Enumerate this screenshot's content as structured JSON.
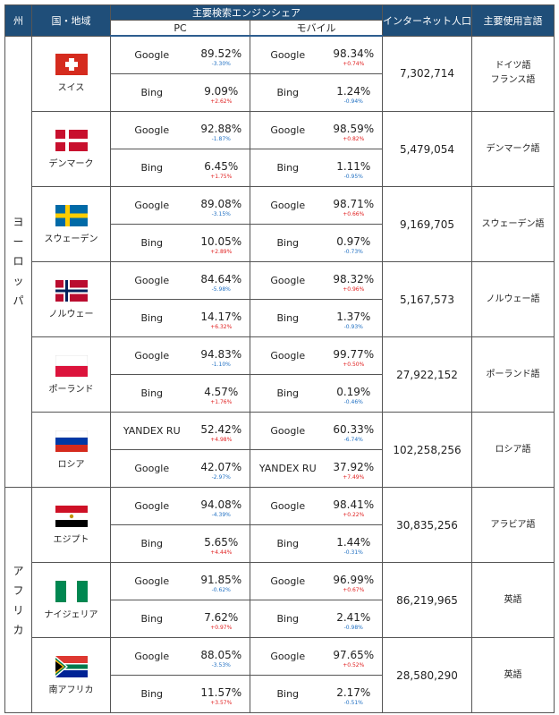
{
  "headers": {
    "region": "州",
    "country": "国・地域",
    "share": "主要検索エンジンシェア",
    "pc": "PC",
    "mobile": "モバイル",
    "internet_pop": "インターネット人口",
    "language": "主要使用言語"
  },
  "regions": [
    {
      "name": "ヨーロッパ",
      "chars": [
        "ヨ",
        "ー",
        "ロ",
        "ッ",
        "パ"
      ]
    },
    {
      "name": "アフリカ",
      "chars": [
        "ア",
        "フ",
        "リ",
        "カ"
      ]
    }
  ],
  "countries": [
    {
      "name": "スイス",
      "flag": "switzerland-flag",
      "population": "7,302,714",
      "languages": [
        "ドイツ語",
        "フランス語"
      ],
      "rows": [
        {
          "pc_engine": "Google",
          "pc_share": "89.52%",
          "pc_delta": "-3.30%",
          "pc_dir": "down",
          "mob_engine": "Google",
          "mob_share": "98.34%",
          "mob_delta": "+0.74%",
          "mob_dir": "up"
        },
        {
          "pc_engine": "Bing",
          "pc_share": "9.09%",
          "pc_delta": "+2.62%",
          "pc_dir": "up",
          "mob_engine": "Bing",
          "mob_share": "1.24%",
          "mob_delta": "-0.94%",
          "mob_dir": "down"
        }
      ]
    },
    {
      "name": "デンマーク",
      "flag": "denmark-flag",
      "population": "5,479,054",
      "languages": [
        "デンマーク語"
      ],
      "rows": [
        {
          "pc_engine": "Google",
          "pc_share": "92.88%",
          "pc_delta": "-1.87%",
          "pc_dir": "down",
          "mob_engine": "Google",
          "mob_share": "98.59%",
          "mob_delta": "+0.82%",
          "mob_dir": "up"
        },
        {
          "pc_engine": "Bing",
          "pc_share": "6.45%",
          "pc_delta": "+1.75%",
          "pc_dir": "up",
          "mob_engine": "Bing",
          "mob_share": "1.11%",
          "mob_delta": "-0.95%",
          "mob_dir": "down"
        }
      ]
    },
    {
      "name": "スウェーデン",
      "flag": "sweden-flag",
      "population": "9,169,705",
      "languages": [
        "スウェーデン語"
      ],
      "rows": [
        {
          "pc_engine": "Google",
          "pc_share": "89.08%",
          "pc_delta": "-3.15%",
          "pc_dir": "down",
          "mob_engine": "Google",
          "mob_share": "98.71%",
          "mob_delta": "+0.66%",
          "mob_dir": "up"
        },
        {
          "pc_engine": "Bing",
          "pc_share": "10.05%",
          "pc_delta": "+2.89%",
          "pc_dir": "up",
          "mob_engine": "Bing",
          "mob_share": "0.97%",
          "mob_delta": "-0.73%",
          "mob_dir": "down"
        }
      ]
    },
    {
      "name": "ノルウェー",
      "flag": "norway-flag",
      "population": "5,167,573",
      "languages": [
        "ノルウェー語"
      ],
      "rows": [
        {
          "pc_engine": "Google",
          "pc_share": "84.64%",
          "pc_delta": "-5.98%",
          "pc_dir": "down",
          "mob_engine": "Google",
          "mob_share": "98.32%",
          "mob_delta": "+0.96%",
          "mob_dir": "up"
        },
        {
          "pc_engine": "Bing",
          "pc_share": "14.17%",
          "pc_delta": "+6.32%",
          "pc_dir": "up",
          "mob_engine": "Bing",
          "mob_share": "1.37%",
          "mob_delta": "-0.93%",
          "mob_dir": "down"
        }
      ]
    },
    {
      "name": "ポーランド",
      "flag": "poland-flag",
      "population": "27,922,152",
      "languages": [
        "ポーランド語"
      ],
      "rows": [
        {
          "pc_engine": "Google",
          "pc_share": "94.83%",
          "pc_delta": "-1.10%",
          "pc_dir": "down",
          "mob_engine": "Google",
          "mob_share": "99.77%",
          "mob_delta": "+0.50%",
          "mob_dir": "up"
        },
        {
          "pc_engine": "Bing",
          "pc_share": "4.57%",
          "pc_delta": "+1.76%",
          "pc_dir": "up",
          "mob_engine": "Bing",
          "mob_share": "0.19%",
          "mob_delta": "-0.46%",
          "mob_dir": "down"
        }
      ]
    },
    {
      "name": "ロシア",
      "flag": "russia-flag",
      "population": "102,258,256",
      "languages": [
        "ロシア語"
      ],
      "rows": [
        {
          "pc_engine": "YANDEX RU",
          "pc_share": "52.42%",
          "pc_delta": "+4.98%",
          "pc_dir": "up",
          "mob_engine": "Google",
          "mob_share": "60.33%",
          "mob_delta": "-6.74%",
          "mob_dir": "down"
        },
        {
          "pc_engine": "Google",
          "pc_share": "42.07%",
          "pc_delta": "-2.97%",
          "pc_dir": "down",
          "mob_engine": "YANDEX RU",
          "mob_share": "37.92%",
          "mob_delta": "+7.49%",
          "mob_dir": "up"
        }
      ]
    },
    {
      "name": "エジプト",
      "flag": "egypt-flag",
      "population": "30,835,256",
      "languages": [
        "アラビア語"
      ],
      "rows": [
        {
          "pc_engine": "Google",
          "pc_share": "94.08%",
          "pc_delta": "-4.39%",
          "pc_dir": "down",
          "mob_engine": "Google",
          "mob_share": "98.41%",
          "mob_delta": "+0.22%",
          "mob_dir": "up"
        },
        {
          "pc_engine": "Bing",
          "pc_share": "5.65%",
          "pc_delta": "+4.44%",
          "pc_dir": "up",
          "mob_engine": "Bing",
          "mob_share": "1.44%",
          "mob_delta": "-0.31%",
          "mob_dir": "down"
        }
      ]
    },
    {
      "name": "ナイジェリア",
      "flag": "nigeria-flag",
      "population": "86,219,965",
      "languages": [
        "英語"
      ],
      "rows": [
        {
          "pc_engine": "Google",
          "pc_share": "91.85%",
          "pc_delta": "-0.62%",
          "pc_dir": "down",
          "mob_engine": "Google",
          "mob_share": "96.99%",
          "mob_delta": "+0.67%",
          "mob_dir": "up"
        },
        {
          "pc_engine": "Bing",
          "pc_share": "7.62%",
          "pc_delta": "+0.97%",
          "pc_dir": "up",
          "mob_engine": "Bing",
          "mob_share": "2.41%",
          "mob_delta": "-0.98%",
          "mob_dir": "down"
        }
      ]
    },
    {
      "name": "南アフリカ",
      "flag": "south-africa-flag",
      "population": "28,580,290",
      "languages": [
        "英語"
      ],
      "rows": [
        {
          "pc_engine": "Google",
          "pc_share": "88.05%",
          "pc_delta": "-3.53%",
          "pc_dir": "down",
          "mob_engine": "Google",
          "mob_share": "97.65%",
          "mob_delta": "+0.52%",
          "mob_dir": "up"
        },
        {
          "pc_engine": "Bing",
          "pc_share": "11.57%",
          "pc_delta": "+3.57%",
          "pc_dir": "up",
          "mob_engine": "Bing",
          "mob_share": "2.17%",
          "mob_delta": "-0.51%",
          "mob_dir": "down"
        }
      ]
    }
  ],
  "colors": {
    "header_bg": "#1f4e79",
    "increase": "#e02020",
    "decrease": "#1f6fc2"
  }
}
